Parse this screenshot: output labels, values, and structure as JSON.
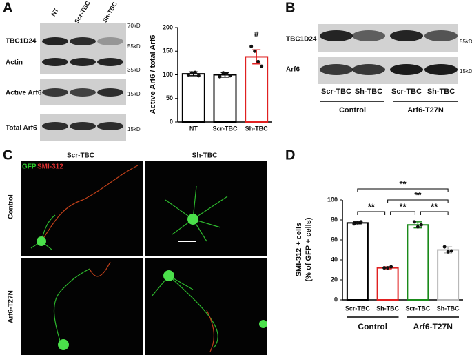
{
  "panel_labels": [
    "A",
    "B",
    "C",
    "D"
  ],
  "blot_a": {
    "lanes": [
      "NT",
      "Scr-TBC",
      "Sh-TBC"
    ],
    "rows": [
      "TBC1D24",
      "Actin",
      "Active Arf6",
      "Total Arf6"
    ],
    "markers": [
      "70kD",
      "55kD",
      "35kD",
      "15kD",
      "15kD"
    ]
  },
  "blot_b": {
    "rows": [
      "TBC1D24",
      "Arf6"
    ],
    "markers": [
      "55kD",
      "15kD"
    ],
    "lanes": [
      "Scr-TBC",
      "Sh-TBC",
      "Scr-TBC",
      "Sh-TBC"
    ],
    "groups": [
      "Control",
      "Arf6-T27N"
    ]
  },
  "micrographs": {
    "stain_green": "GFP",
    "stain_red": "SMI-312",
    "columns": [
      "Scr-TBC",
      "Sh-TBC"
    ],
    "rows": [
      "Control",
      "Arf6-T27N"
    ]
  },
  "chart_data": [
    {
      "type": "bar",
      "y_label": "Active Arf6 / total Arf6",
      "categories": [
        "NT",
        "Scr-TBC",
        "Sh-TBC"
      ],
      "values": [
        102,
        100,
        138
      ],
      "errors": [
        4,
        5,
        15
      ],
      "colors": [
        "#000000",
        "#000000",
        "#e02020"
      ],
      "points": [
        [
          100,
          104,
          105,
          98
        ],
        [
          96,
          104,
          102,
          98
        ],
        [
          160,
          150,
          128,
          118
        ]
      ],
      "annotations": [
        "#"
      ],
      "ylim": [
        0,
        200
      ],
      "yticks": [
        0,
        50,
        100,
        150,
        200
      ]
    },
    {
      "type": "bar",
      "y_label": [
        "SMI-312 + cells",
        "(% of GFP + cells)"
      ],
      "categories": [
        "Scr-TBC",
        "Sh-TBC",
        "Scr-TBC",
        "Sh-TBC"
      ],
      "groups": [
        "Control",
        "Arf6-T27N"
      ],
      "values": [
        77,
        32,
        75,
        50
      ],
      "errors": [
        1,
        1,
        3,
        3
      ],
      "colors": [
        "#000000",
        "#e02020",
        "#1a8a1a",
        "#b8b8b8"
      ],
      "points": [
        [
          76,
          77,
          78
        ],
        [
          32,
          32,
          33
        ],
        [
          78,
          73,
          75
        ],
        [
          53,
          48,
          49
        ]
      ],
      "annotations": [
        "**",
        "**",
        "**",
        "**",
        "**"
      ],
      "ylim": [
        0,
        100
      ],
      "yticks": [
        0,
        20,
        40,
        60,
        80,
        100
      ]
    }
  ]
}
